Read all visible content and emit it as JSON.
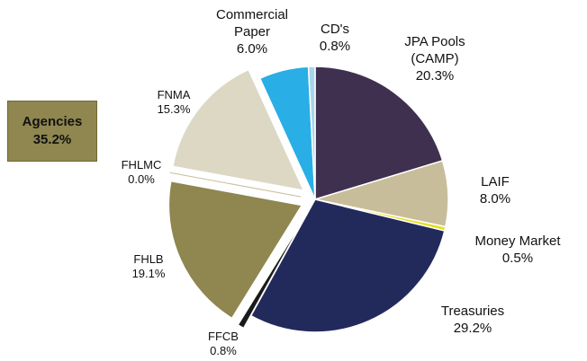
{
  "chart_data": {
    "type": "pie",
    "categories": [
      "JPA Pools (CAMP)",
      "LAIF",
      "Money Market",
      "Treasuries",
      "FFCB",
      "FHLB",
      "FHLMC",
      "FNMA",
      "Commercial Paper",
      "CD's"
    ],
    "values": [
      20.3,
      8.0,
      0.5,
      29.2,
      0.8,
      19.1,
      0.0,
      15.3,
      6.0,
      0.8
    ],
    "value_labels": [
      "20.3%",
      "8.0%",
      "0.5%",
      "29.2%",
      "0.8%",
      "19.1%",
      "0.0%",
      "15.3%",
      "6.0%",
      "0.8%"
    ],
    "colors": [
      "#3f3050",
      "#c8bd9a",
      "#e6df1e",
      "#222a5c",
      "#1a1a1a",
      "#8f8650",
      "#c8bd9a",
      "#ddd8c4",
      "#29aee6",
      "#a8d4ec"
    ],
    "explode": [
      0,
      0,
      0,
      0,
      1,
      1,
      1,
      1,
      0,
      0
    ],
    "annotation": {
      "label": "Agencies",
      "value": 35.2,
      "value_label": "35.2%"
    }
  }
}
